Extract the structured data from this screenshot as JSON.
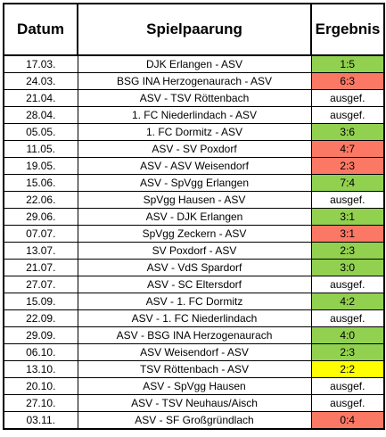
{
  "header": {
    "date": "Datum",
    "match": "Spielpaarung",
    "result": "Ergebnis"
  },
  "colors": {
    "win": "#92d050",
    "loss": "#fa7864",
    "draw": "#ffff00",
    "none": "#ffffff"
  },
  "rows": [
    {
      "date": "17.03.",
      "match": "DJK Erlangen - ASV",
      "result": "1:5",
      "status": "win"
    },
    {
      "date": "24.03.",
      "match": "BSG INA Herzogenaurach - ASV",
      "result": "6:3",
      "status": "loss"
    },
    {
      "date": "21.04.",
      "match": "ASV - TSV Röttenbach",
      "result": "ausgef.",
      "status": "none"
    },
    {
      "date": "28.04.",
      "match": "1. FC Niederlindach - ASV",
      "result": "ausgef.",
      "status": "none"
    },
    {
      "date": "05.05.",
      "match": "1. FC Dormitz - ASV",
      "result": "3:6",
      "status": "win"
    },
    {
      "date": "11.05.",
      "match": "ASV - SV Poxdorf",
      "result": "4:7",
      "status": "loss"
    },
    {
      "date": "19.05.",
      "match": "ASV - ASV Weisendorf",
      "result": "2:3",
      "status": "loss"
    },
    {
      "date": "15.06.",
      "match": "ASV - SpVgg Erlangen",
      "result": "7:4",
      "status": "win"
    },
    {
      "date": "22.06.",
      "match": "SpVgg Hausen - ASV",
      "result": "ausgef.",
      "status": "none"
    },
    {
      "date": "29.06.",
      "match": "ASV - DJK Erlangen",
      "result": "3:1",
      "status": "win"
    },
    {
      "date": "07.07.",
      "match": "SpVgg Zeckern - ASV",
      "result": "3:1",
      "status": "loss"
    },
    {
      "date": "13.07.",
      "match": "SV Poxdorf - ASV",
      "result": "2:3",
      "status": "win"
    },
    {
      "date": "21.07.",
      "match": "ASV - VdS Spardorf",
      "result": "3:0",
      "status": "win"
    },
    {
      "date": "27.07.",
      "match": "ASV - SC Eltersdorf",
      "result": "ausgef.",
      "status": "none"
    },
    {
      "date": "15.09.",
      "match": "ASV - 1. FC Dormitz",
      "result": "4:2",
      "status": "win"
    },
    {
      "date": "22.09.",
      "match": "ASV - 1. FC Niederlindach",
      "result": "ausgef.",
      "status": "none"
    },
    {
      "date": "29.09.",
      "match": "ASV - BSG INA Herzogenaurach",
      "result": "4:0",
      "status": "win"
    },
    {
      "date": "06.10.",
      "match": "ASV Weisendorf - ASV",
      "result": "2:3",
      "status": "win"
    },
    {
      "date": "13.10.",
      "match": "TSV Röttenbach - ASV",
      "result": "2:2",
      "status": "draw"
    },
    {
      "date": "20.10.",
      "match": "ASV - SpVgg Hausen",
      "result": "ausgef.",
      "status": "none"
    },
    {
      "date": "27.10.",
      "match": "ASV - TSV Neuhaus/Aisch",
      "result": "ausgef.",
      "status": "none"
    },
    {
      "date": "03.11.",
      "match": "ASV - SF Großgründlach",
      "result": "0:4",
      "status": "loss"
    }
  ]
}
